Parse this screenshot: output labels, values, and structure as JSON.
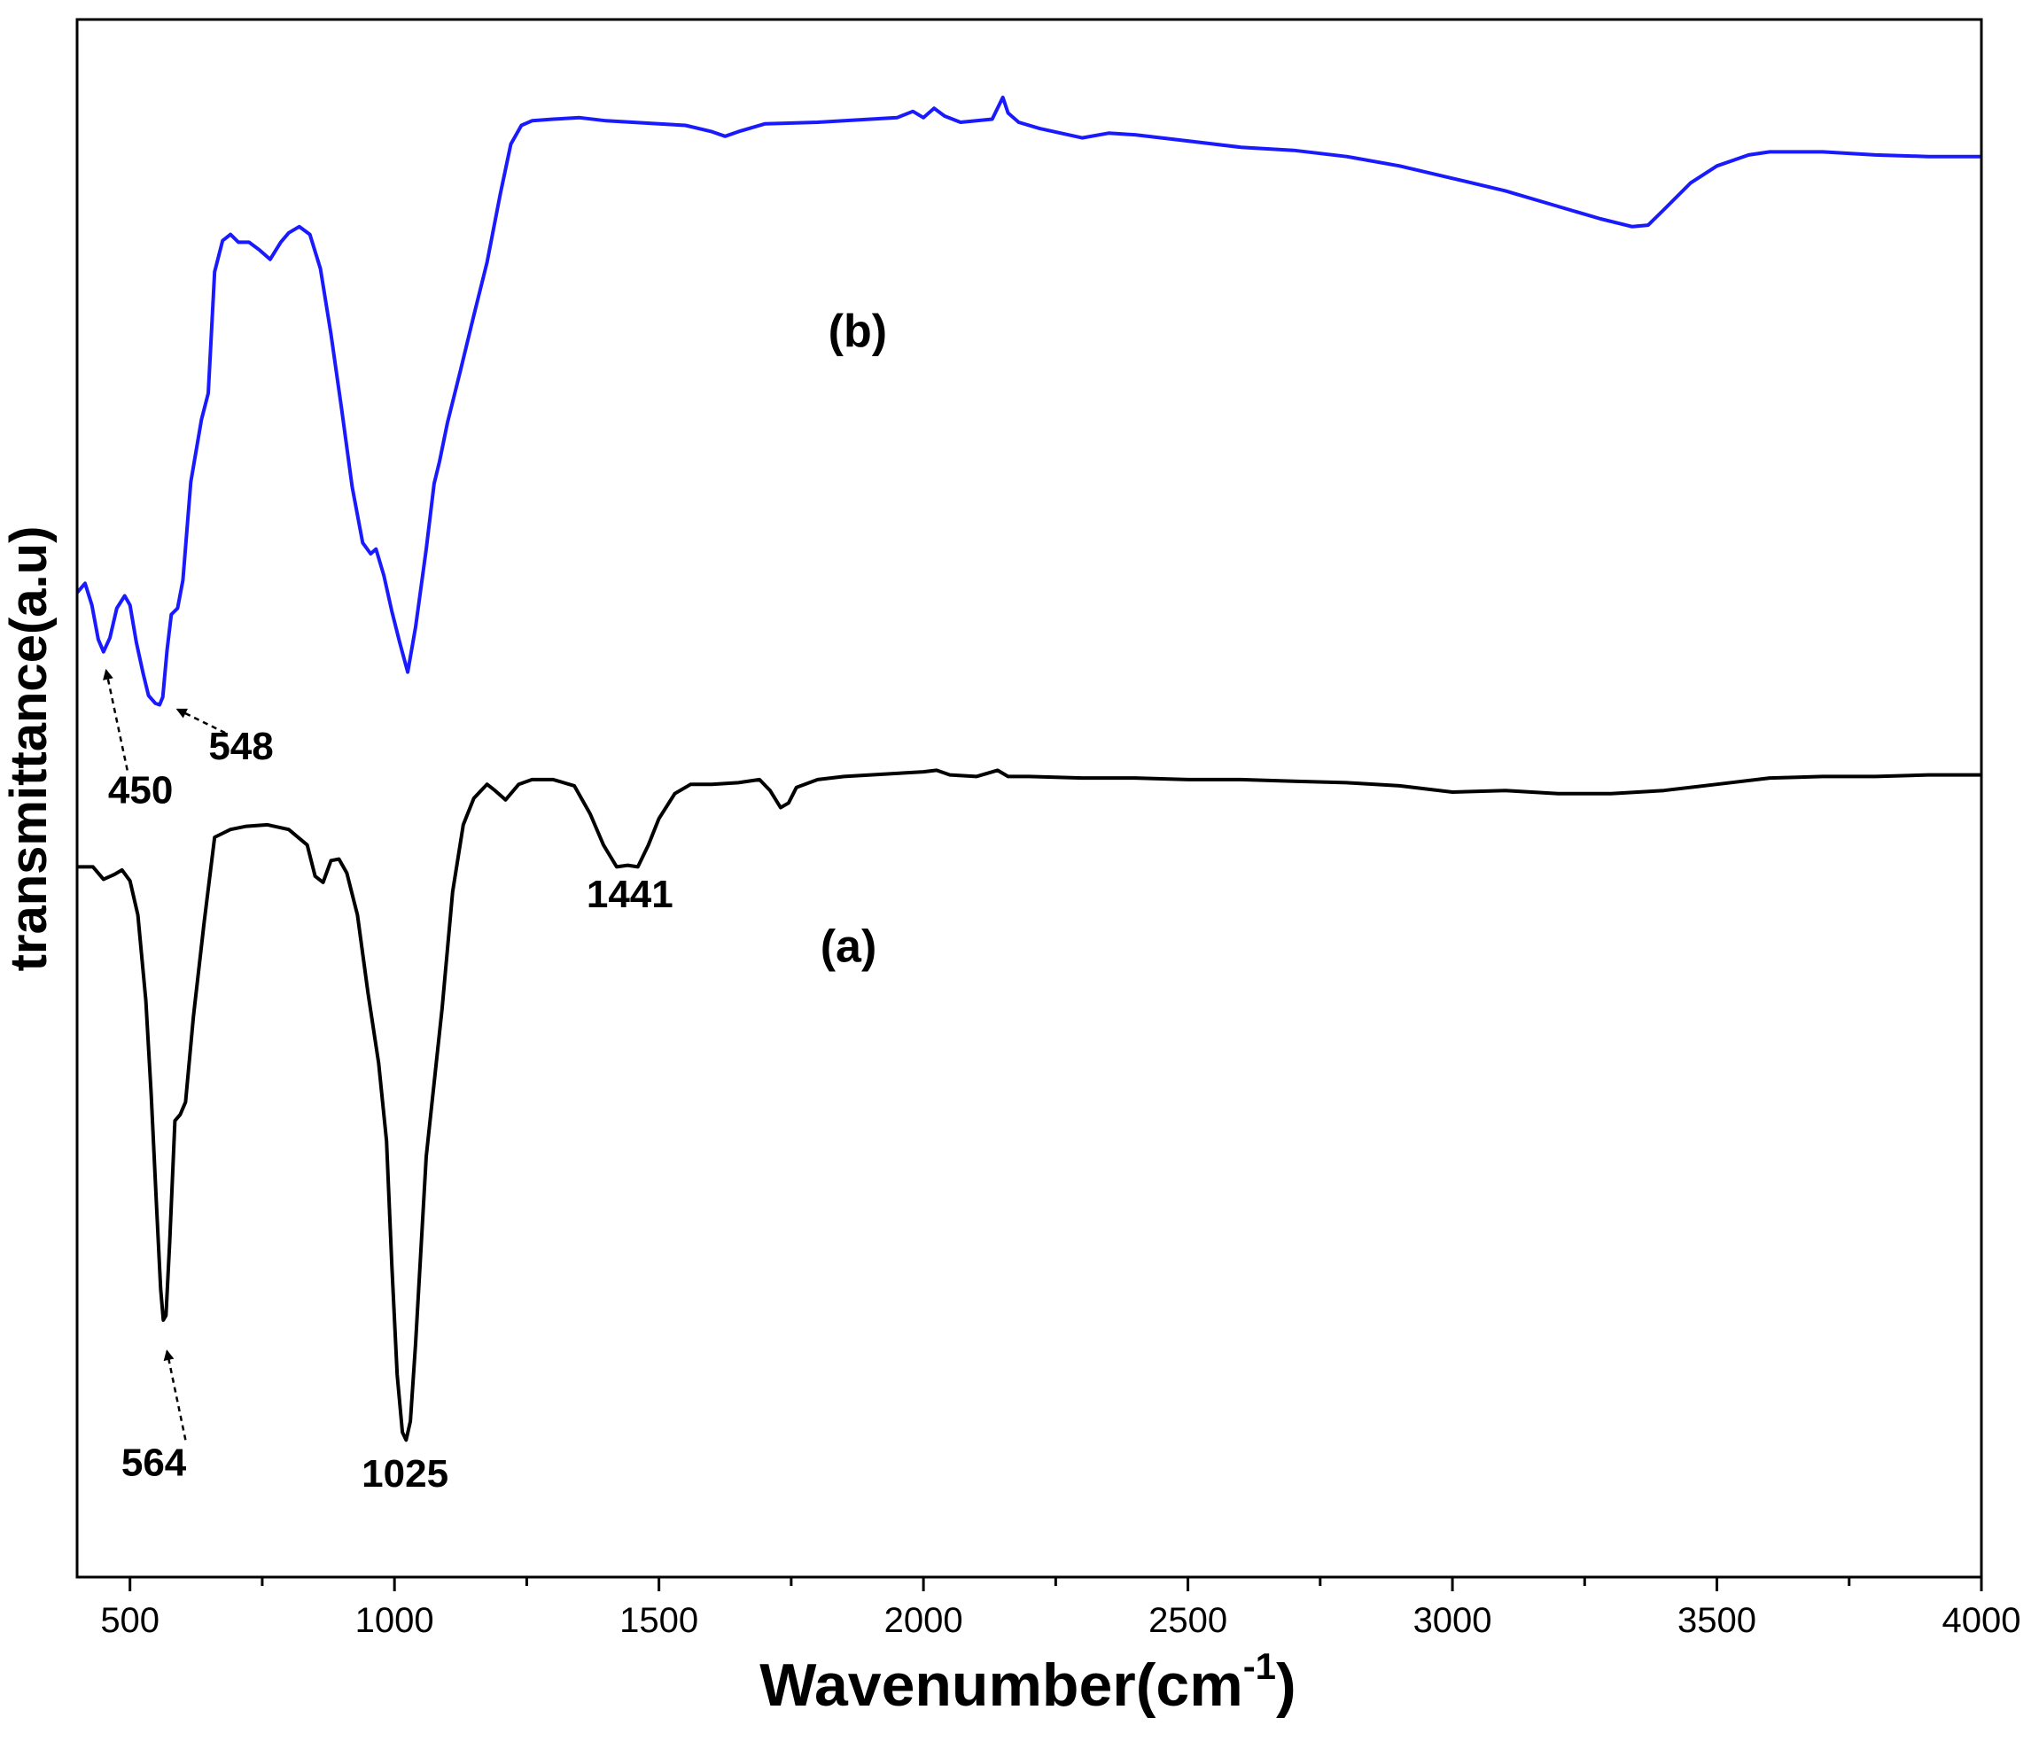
{
  "chart_data": {
    "type": "line",
    "xlabel": "Wavenumber(cm",
    "xlabel_superscript": "-1",
    "xlabel_close": ")",
    "ylabel": "transmittance(a.u)",
    "xlim": [
      400,
      4000
    ],
    "ylim": [
      0,
      1
    ],
    "grid": false,
    "x_ticks": [
      500,
      1000,
      1500,
      2000,
      2500,
      3000,
      3500,
      4000
    ],
    "x_tick_labels": [
      "500",
      "1000",
      "1500",
      "2000",
      "2500",
      "3000",
      "3500",
      "4000"
    ],
    "series": [
      {
        "name": "(b)",
        "color": "#1a1aff",
        "label_pos": [
          1820,
          0.79
        ],
        "points": [
          [
            400,
            0.632
          ],
          [
            415,
            0.638
          ],
          [
            428,
            0.624
          ],
          [
            440,
            0.602
          ],
          [
            450,
            0.594
          ],
          [
            462,
            0.603
          ],
          [
            475,
            0.622
          ],
          [
            490,
            0.63
          ],
          [
            500,
            0.624
          ],
          [
            512,
            0.6
          ],
          [
            525,
            0.58
          ],
          [
            535,
            0.566
          ],
          [
            548,
            0.561
          ],
          [
            556,
            0.56
          ],
          [
            562,
            0.565
          ],
          [
            570,
            0.595
          ],
          [
            578,
            0.618
          ],
          [
            590,
            0.622
          ],
          [
            600,
            0.64
          ],
          [
            615,
            0.703
          ],
          [
            635,
            0.743
          ],
          [
            648,
            0.76
          ],
          [
            660,
            0.838
          ],
          [
            675,
            0.858
          ],
          [
            690,
            0.862
          ],
          [
            705,
            0.857
          ],
          [
            725,
            0.857
          ],
          [
            745,
            0.852
          ],
          [
            765,
            0.846
          ],
          [
            785,
            0.857
          ],
          [
            800,
            0.863
          ],
          [
            820,
            0.867
          ],
          [
            840,
            0.862
          ],
          [
            860,
            0.84
          ],
          [
            880,
            0.798
          ],
          [
            900,
            0.75
          ],
          [
            920,
            0.7
          ],
          [
            940,
            0.664
          ],
          [
            955,
            0.657
          ],
          [
            965,
            0.66
          ],
          [
            980,
            0.643
          ],
          [
            995,
            0.62
          ],
          [
            1010,
            0.6
          ],
          [
            1025,
            0.581
          ],
          [
            1040,
            0.61
          ],
          [
            1060,
            0.66
          ],
          [
            1075,
            0.702
          ],
          [
            1085,
            0.716
          ],
          [
            1100,
            0.741
          ],
          [
            1125,
            0.775
          ],
          [
            1150,
            0.81
          ],
          [
            1175,
            0.844
          ],
          [
            1200,
            0.888
          ],
          [
            1220,
            0.92
          ],
          [
            1240,
            0.932
          ],
          [
            1260,
            0.935
          ],
          [
            1300,
            0.936
          ],
          [
            1350,
            0.937
          ],
          [
            1400,
            0.935
          ],
          [
            1450,
            0.934
          ],
          [
            1500,
            0.933
          ],
          [
            1550,
            0.932
          ],
          [
            1600,
            0.928
          ],
          [
            1625,
            0.925
          ],
          [
            1650,
            0.928
          ],
          [
            1700,
            0.933
          ],
          [
            1800,
            0.934
          ],
          [
            1900,
            0.936
          ],
          [
            1950,
            0.937
          ],
          [
            1980,
            0.941
          ],
          [
            2000,
            0.937
          ],
          [
            2020,
            0.943
          ],
          [
            2040,
            0.938
          ],
          [
            2070,
            0.934
          ],
          [
            2100,
            0.935
          ],
          [
            2130,
            0.936
          ],
          [
            2150,
            0.95
          ],
          [
            2160,
            0.94
          ],
          [
            2180,
            0.934
          ],
          [
            2220,
            0.93
          ],
          [
            2260,
            0.927
          ],
          [
            2300,
            0.924
          ],
          [
            2350,
            0.927
          ],
          [
            2400,
            0.926
          ],
          [
            2500,
            0.922
          ],
          [
            2600,
            0.918
          ],
          [
            2700,
            0.916
          ],
          [
            2800,
            0.912
          ],
          [
            2900,
            0.906
          ],
          [
            3000,
            0.898
          ],
          [
            3100,
            0.89
          ],
          [
            3200,
            0.88
          ],
          [
            3280,
            0.872
          ],
          [
            3340,
            0.867
          ],
          [
            3370,
            0.868
          ],
          [
            3400,
            0.878
          ],
          [
            3450,
            0.895
          ],
          [
            3500,
            0.906
          ],
          [
            3560,
            0.913
          ],
          [
            3600,
            0.915
          ],
          [
            3650,
            0.915
          ],
          [
            3700,
            0.915
          ],
          [
            3800,
            0.913
          ],
          [
            3900,
            0.912
          ],
          [
            4000,
            0.912
          ]
        ]
      },
      {
        "name": "(a)",
        "color": "#000000",
        "label_pos": [
          1805,
          0.395
        ],
        "points": [
          [
            400,
            0.456
          ],
          [
            430,
            0.456
          ],
          [
            450,
            0.448
          ],
          [
            470,
            0.451
          ],
          [
            485,
            0.454
          ],
          [
            500,
            0.447
          ],
          [
            515,
            0.425
          ],
          [
            530,
            0.37
          ],
          [
            540,
            0.31
          ],
          [
            550,
            0.24
          ],
          [
            558,
            0.185
          ],
          [
            563,
            0.165
          ],
          [
            568,
            0.168
          ],
          [
            575,
            0.215
          ],
          [
            585,
            0.293
          ],
          [
            595,
            0.297
          ],
          [
            605,
            0.305
          ],
          [
            620,
            0.36
          ],
          [
            640,
            0.42
          ],
          [
            660,
            0.475
          ],
          [
            690,
            0.48
          ],
          [
            720,
            0.482
          ],
          [
            760,
            0.483
          ],
          [
            800,
            0.48
          ],
          [
            835,
            0.47
          ],
          [
            850,
            0.45
          ],
          [
            865,
            0.446
          ],
          [
            880,
            0.46
          ],
          [
            895,
            0.461
          ],
          [
            910,
            0.452
          ],
          [
            930,
            0.425
          ],
          [
            950,
            0.375
          ],
          [
            970,
            0.33
          ],
          [
            985,
            0.28
          ],
          [
            995,
            0.2
          ],
          [
            1005,
            0.13
          ],
          [
            1015,
            0.093
          ],
          [
            1022,
            0.088
          ],
          [
            1030,
            0.1
          ],
          [
            1040,
            0.15
          ],
          [
            1060,
            0.27
          ],
          [
            1090,
            0.365
          ],
          [
            1110,
            0.44
          ],
          [
            1130,
            0.483
          ],
          [
            1150,
            0.5
          ],
          [
            1175,
            0.509
          ],
          [
            1190,
            0.505
          ],
          [
            1210,
            0.499
          ],
          [
            1235,
            0.509
          ],
          [
            1260,
            0.512
          ],
          [
            1300,
            0.512
          ],
          [
            1340,
            0.508
          ],
          [
            1370,
            0.49
          ],
          [
            1395,
            0.47
          ],
          [
            1420,
            0.456
          ],
          [
            1441,
            0.457
          ],
          [
            1460,
            0.456
          ],
          [
            1480,
            0.47
          ],
          [
            1500,
            0.487
          ],
          [
            1530,
            0.503
          ],
          [
            1560,
            0.509
          ],
          [
            1600,
            0.509
          ],
          [
            1650,
            0.51
          ],
          [
            1690,
            0.512
          ],
          [
            1710,
            0.505
          ],
          [
            1730,
            0.494
          ],
          [
            1745,
            0.497
          ],
          [
            1760,
            0.507
          ],
          [
            1800,
            0.512
          ],
          [
            1850,
            0.514
          ],
          [
            1900,
            0.515
          ],
          [
            1950,
            0.516
          ],
          [
            2000,
            0.517
          ],
          [
            2025,
            0.518
          ],
          [
            2050,
            0.515
          ],
          [
            2100,
            0.514
          ],
          [
            2140,
            0.518
          ],
          [
            2160,
            0.514
          ],
          [
            2200,
            0.514
          ],
          [
            2300,
            0.513
          ],
          [
            2400,
            0.513
          ],
          [
            2500,
            0.512
          ],
          [
            2600,
            0.512
          ],
          [
            2700,
            0.511
          ],
          [
            2800,
            0.51
          ],
          [
            2900,
            0.508
          ],
          [
            3000,
            0.504
          ],
          [
            3100,
            0.505
          ],
          [
            3200,
            0.503
          ],
          [
            3300,
            0.503
          ],
          [
            3400,
            0.505
          ],
          [
            3500,
            0.509
          ],
          [
            3600,
            0.513
          ],
          [
            3700,
            0.514
          ],
          [
            3800,
            0.514
          ],
          [
            3900,
            0.515
          ],
          [
            4000,
            0.515
          ]
        ]
      }
    ],
    "annotations": [
      {
        "text": "450",
        "label_at": [
          520,
          0.497
        ],
        "arrow_tail": [
          495,
          0.518
        ],
        "arrow_head": [
          455,
          0.582
        ]
      },
      {
        "text": "548",
        "label_at": [
          710,
          0.525
        ],
        "arrow_tail": [
          680,
          0.542
        ],
        "arrow_head": [
          590,
          0.557
        ]
      },
      {
        "text": "564",
        "label_at": [
          545,
          0.065
        ],
        "arrow_tail": [
          605,
          0.088
        ],
        "arrow_head": [
          570,
          0.145
        ]
      },
      {
        "text": "1025",
        "label_at": [
          1020,
          0.058
        ]
      },
      {
        "text": "1441",
        "label_at": [
          1445,
          0.43
        ]
      }
    ]
  }
}
